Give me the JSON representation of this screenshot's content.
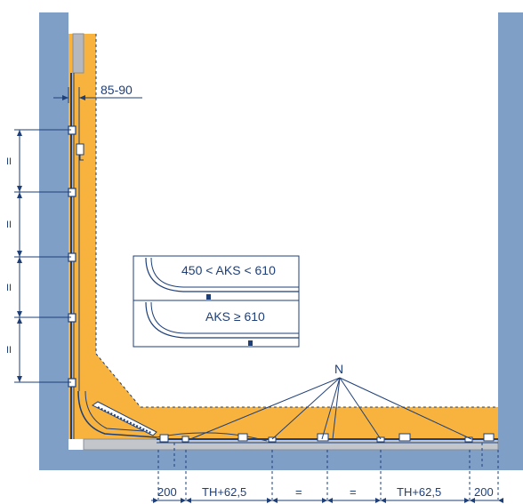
{
  "labels": {
    "wall_offset": "85-90",
    "inset_range": "450 < AKS < 610",
    "inset_min": "AKS ≥ 610",
    "n_label": "N",
    "bottom_dims": [
      "200",
      "TH+62,5",
      "=",
      "=",
      "TH+62,5",
      "200"
    ],
    "equal_marks": [
      "II",
      "II",
      "II",
      "II"
    ]
  },
  "colors": {
    "wall": "#7f9fc6",
    "insulation": "#f7b33d",
    "line": "#1e3f78",
    "panel": "#ffffff"
  }
}
